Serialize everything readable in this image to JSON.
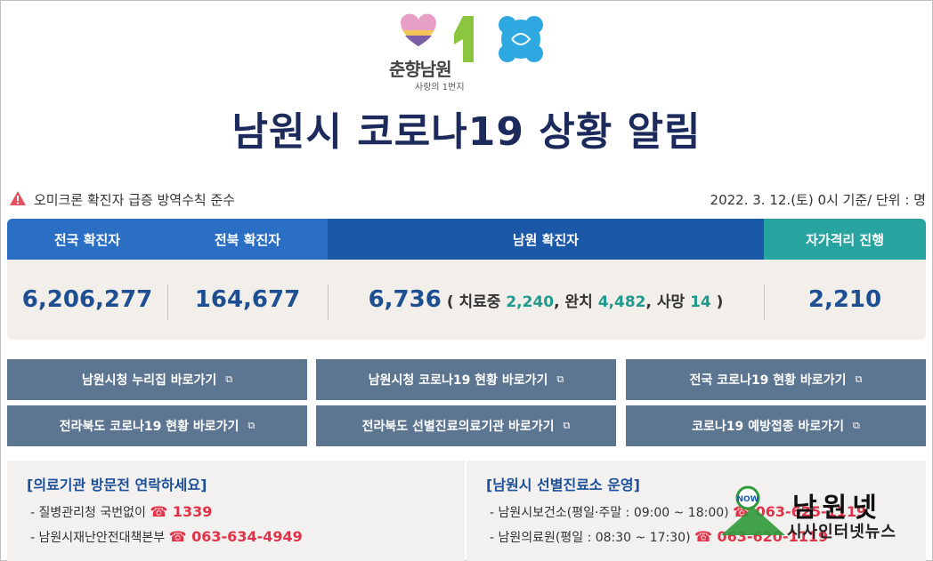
{
  "logo": {
    "brand": "춘향남원",
    "tagline": "사랑의 1번지"
  },
  "title": "남원시 코로나19 상황 알림",
  "notice": {
    "text": "오미크론 확진자 급증 방역수칙 준수",
    "basis": "2022. 3. 12.(토) 0시 기준/ 단위 : 명"
  },
  "stats": {
    "headers": {
      "national": "전국 확진자",
      "jeonbuk": "전북 확진자",
      "namwon": "남원 확진자",
      "isolation": "자가격리 진행"
    },
    "national": "6,206,277",
    "jeonbuk": "164,677",
    "namwon": "6,736",
    "detail": {
      "open": "( 치료중 ",
      "treating": "2,240",
      "recovered_label": ", 완치 ",
      "recovered": "4,482",
      "death_label": ", 사망 ",
      "death": "14",
      "close": " )"
    },
    "isolation": "2,210"
  },
  "links": [
    "남원시청 누리집 바로가기",
    "남원시청 코로나19 현황 바로가기",
    "전국 코로나19 현황 바로가기",
    "전라북도 코로나19 현황 바로가기",
    "전라북도 선별진료의료기관 바로가기",
    "코로나19 예방접종 바로가기"
  ],
  "contact": {
    "title": "[의료기관 방문전 연락하세요]",
    "line1_label": "- 질병관리청 국번없이 ",
    "line1_phone": "☎ 1339",
    "line2_label": "- 남원시재난안전대책본부 ",
    "line2_phone": "☎ 063-634-4949"
  },
  "clinic": {
    "title": "[남원시 선별진료소 운영]",
    "line1_label": "- 남원시보건소(평일·주말 : 09:00 ~ 18:00) ",
    "line1_phone": "☎ 063-625-1119",
    "line2_label": "- 남원의료원(평일 : 08:30 ~ 17:30) ",
    "line2_phone": "☎ 063-620-1119"
  },
  "watermark": {
    "name": "남원넷",
    "sub": "시사인터넷뉴스"
  },
  "colors": {
    "navy": "#1c2a5c",
    "blue": "#2b6fc4",
    "teal": "#27a3a0",
    "button": "#5c7591",
    "phone": "#e0334a"
  }
}
